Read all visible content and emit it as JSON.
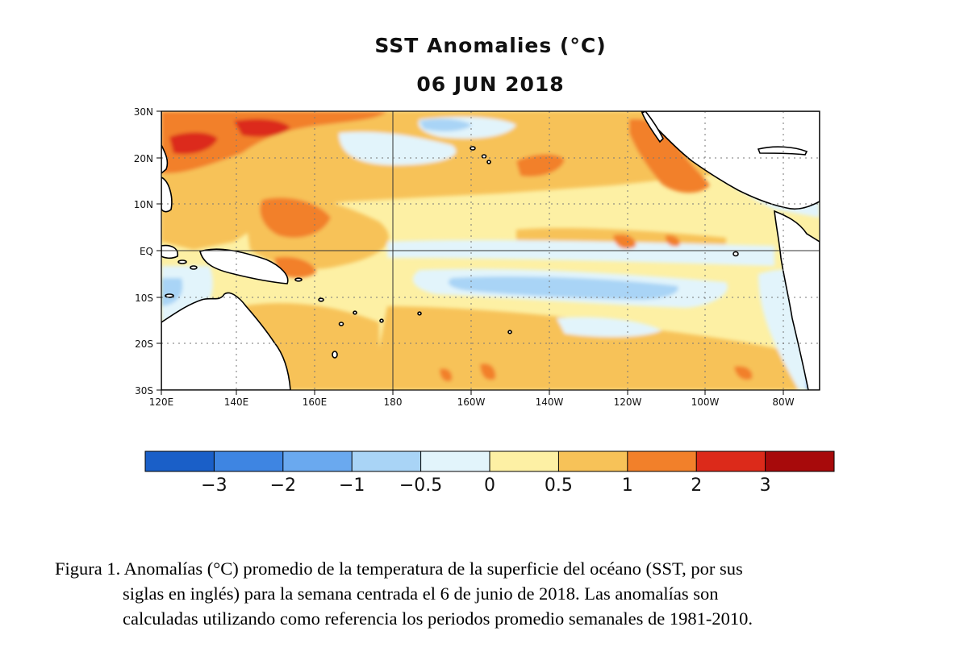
{
  "figure": {
    "title": "SST Anomalies (°C)",
    "date": "06 JUN 2018",
    "latitude_labels": [
      "30N",
      "20N",
      "10N",
      "EQ",
      "10S",
      "20S",
      "30S"
    ],
    "longitude_labels": [
      "120E",
      "140E",
      "160E",
      "180",
      "160W",
      "140W",
      "120W",
      "100W",
      "80W"
    ],
    "extent": {
      "lon_min": "120E",
      "lon_max": "70W",
      "lat_min": "30S",
      "lat_max": "30N"
    },
    "gridlines": "dotted, every 20° longitude and 10° latitude; solid at Equator and 180",
    "land_color": "#ffffff"
  },
  "colorbar": {
    "tick_labels": [
      "−3",
      "−2",
      "−1",
      "−0.5",
      "0",
      "0.5",
      "1",
      "2",
      "3"
    ],
    "colors": [
      "#1a5fc8",
      "#3e85e2",
      "#6aa9ef",
      "#a9d4f6",
      "#e2f4fb",
      "#fdf0a4",
      "#f7c258",
      "#f2802a",
      "#dc2a1a",
      "#a70a0b"
    ]
  },
  "caption": {
    "line1": "Figura 1. Anomalías (°C) promedio de la temperatura de la superficie del océano (SST, por sus",
    "line2": "siglas en inglés) para la semana centrada el 6 de junio de 2018. Las anomalías son",
    "line3": "calculadas utilizando como referencia los periodos promedio semanales de 1981-2010."
  }
}
